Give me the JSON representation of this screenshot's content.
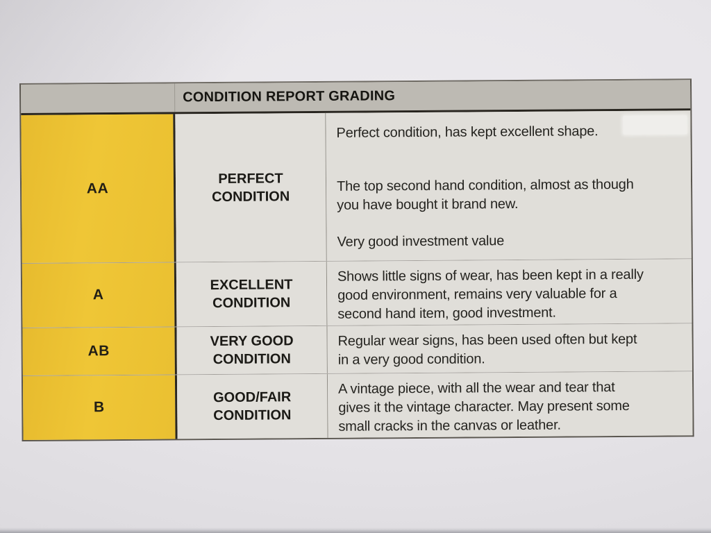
{
  "table": {
    "title": "CONDITION REPORT GRADING",
    "colors": {
      "grade_highlight": "#efc636",
      "header_bg": "#bdbab3",
      "cell_bg": "#e0ded9"
    },
    "rows": [
      {
        "grade": "AA",
        "label": "PERFECT\nCONDITION",
        "paragraphs": [
          "Perfect condition, has kept excellent shape.",
          "The top second hand condition, almost as though\nyou have bought it brand new.",
          "Very good investment value"
        ]
      },
      {
        "grade": "A",
        "label": "EXCELLENT\nCONDITION",
        "paragraphs": [
          "Shows little signs of wear, has been kept in a really\ngood environment, remains very valuable for a\nsecond hand item, good investment."
        ]
      },
      {
        "grade": "AB",
        "label": "VERY GOOD\nCONDITION",
        "paragraphs": [
          "Regular wear signs, has been used often but kept\nin a very good condition."
        ]
      },
      {
        "grade": "B",
        "label": "GOOD/FAIR\nCONDITION",
        "paragraphs": [
          "A vintage piece, with all the wear and tear that\ngives it the vintage character. May present some\nsmall cracks in the canvas or leather."
        ]
      }
    ]
  }
}
